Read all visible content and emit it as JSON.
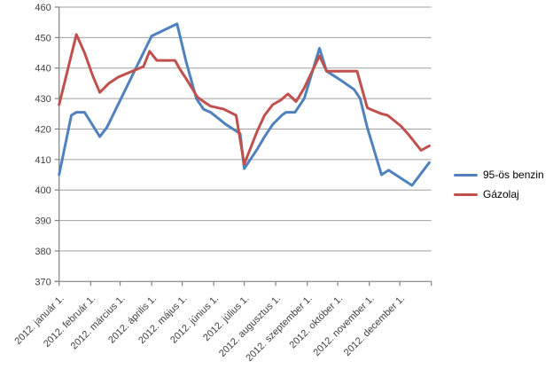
{
  "legend": {
    "items": [
      {
        "label": "95-ös benzin",
        "color": "#4F81BD"
      },
      {
        "label": "Gázolaj",
        "color": "#C0504D"
      }
    ]
  },
  "chart_data": {
    "type": "line",
    "title": "",
    "xlabel": "",
    "ylabel": "",
    "x_unit": "day-of-year-2012",
    "xlim": [
      0,
      366
    ],
    "ylim": [
      370,
      460
    ],
    "y_ticks": [
      370,
      380,
      390,
      400,
      410,
      420,
      430,
      440,
      450,
      460
    ],
    "x_tick_labels": [
      "2012. január 1.",
      "2012. február 1.",
      "2012. március 1.",
      "2012. április 1.",
      "2012. május 1.",
      "2012. június 1.",
      "2012. július 1.",
      "2012. augusztus 1.",
      "2012. szeptember 1.",
      "2012. október 1.",
      "2012. november 1.",
      "2012. december 1."
    ],
    "month_tick_days": [
      0,
      31,
      60,
      91,
      121,
      152,
      182,
      213,
      244,
      274,
      305,
      335,
      366
    ],
    "grid": "horizontal",
    "legend_position": "right",
    "colors": {
      "gridline": "#A0A0A0",
      "axis": "#808080",
      "tick_label": "#404040"
    },
    "series": [
      {
        "name": "95-ös benzin",
        "color": "#4F81BD",
        "points": [
          [
            0,
            405
          ],
          [
            12,
            424.5
          ],
          [
            17,
            425.5
          ],
          [
            25,
            425.5
          ],
          [
            40,
            417.5
          ],
          [
            47,
            420.5
          ],
          [
            91,
            450.5
          ],
          [
            116,
            454.5
          ],
          [
            125,
            442
          ],
          [
            135,
            430
          ],
          [
            142,
            426.5
          ],
          [
            149,
            425.5
          ],
          [
            164,
            421.5
          ],
          [
            178,
            418.5
          ],
          [
            182,
            407
          ],
          [
            195,
            413.5
          ],
          [
            202,
            417.5
          ],
          [
            210,
            421.5
          ],
          [
            219,
            424.5
          ],
          [
            223,
            425.5
          ],
          [
            232,
            425.5
          ],
          [
            241,
            430
          ],
          [
            256,
            446.5
          ],
          [
            263,
            439
          ],
          [
            277,
            436
          ],
          [
            290,
            433
          ],
          [
            296,
            430
          ],
          [
            303,
            420.5
          ],
          [
            317,
            405
          ],
          [
            324,
            406.5
          ],
          [
            347,
            401.5
          ],
          [
            364,
            409
          ]
        ]
      },
      {
        "name": "Gázolaj",
        "color": "#C0504D",
        "points": [
          [
            0,
            428
          ],
          [
            17,
            451
          ],
          [
            25,
            445
          ],
          [
            33,
            437.5
          ],
          [
            40,
            432
          ],
          [
            49,
            435
          ],
          [
            58,
            437
          ],
          [
            72,
            439
          ],
          [
            83,
            440.5
          ],
          [
            89,
            445.5
          ],
          [
            96,
            442.5
          ],
          [
            114,
            442.5
          ],
          [
            119,
            439.5
          ],
          [
            125,
            436.5
          ],
          [
            136,
            430.5
          ],
          [
            142,
            429
          ],
          [
            149,
            427.5
          ],
          [
            162,
            426.5
          ],
          [
            174,
            424.5
          ],
          [
            182,
            408.5
          ],
          [
            195,
            419.5
          ],
          [
            202,
            424.5
          ],
          [
            210,
            428
          ],
          [
            218,
            429.5
          ],
          [
            225,
            431.5
          ],
          [
            233,
            429
          ],
          [
            241,
            433.5
          ],
          [
            256,
            444
          ],
          [
            263,
            439
          ],
          [
            293,
            439
          ],
          [
            303,
            427
          ],
          [
            306,
            426.5
          ],
          [
            317,
            425
          ],
          [
            323,
            424.5
          ],
          [
            336,
            421
          ],
          [
            344,
            418
          ],
          [
            356,
            413
          ],
          [
            364,
            414.5
          ]
        ]
      }
    ]
  }
}
